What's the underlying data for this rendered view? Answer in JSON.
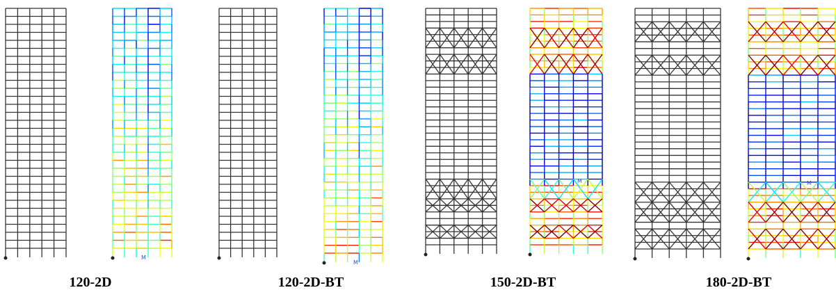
{
  "panels": [
    {
      "caption": "120-2D",
      "marker": "M"
    },
    {
      "caption": "120-2D-BT",
      "marker": "M"
    },
    {
      "caption": "150-2D-BT",
      "marker": "M"
    },
    {
      "caption": "180-2D-BT",
      "marker": "M"
    }
  ]
}
